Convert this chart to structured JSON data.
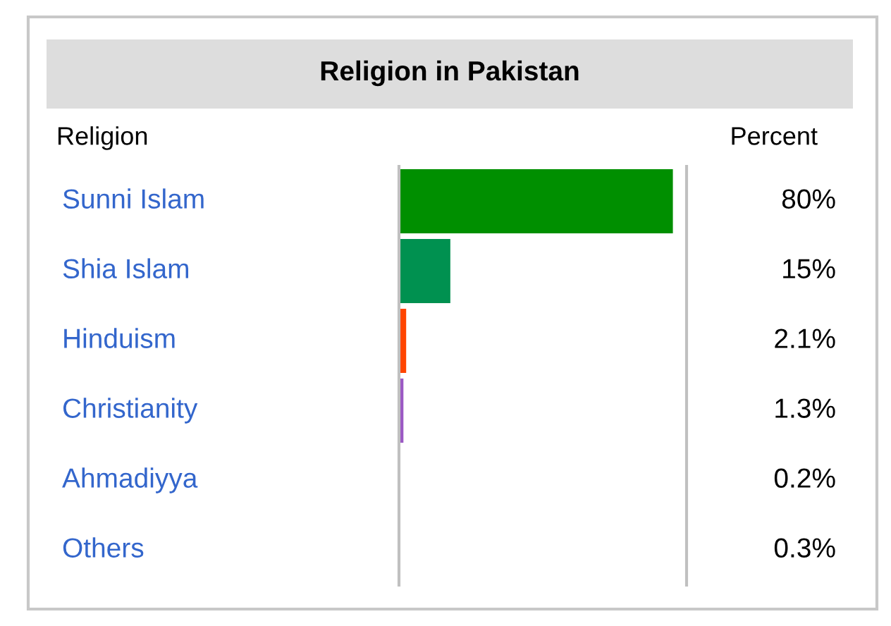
{
  "chart_data": {
    "type": "bar",
    "orientation": "horizontal",
    "title": "Religion in Pakistan",
    "ylabel": "Religion",
    "annotations": [
      "Percent"
    ],
    "categories": [
      "Sunni Islam",
      "Shia Islam",
      "Hinduism",
      "Christianity",
      "Ahmadiyya",
      "Others"
    ],
    "values": [
      80,
      15,
      2.1,
      1.3,
      0.2,
      0.3
    ],
    "colors": [
      "#008f00",
      "#009150",
      "#ff4500",
      "#9b59c4",
      "#ff4500",
      "#ff4500"
    ],
    "value_labels": [
      "80%",
      "15%",
      "2.1%",
      "1.3%",
      "0.2%",
      "0.3%"
    ],
    "tick_labels": "y",
    "grid": false,
    "legend": false
  }
}
